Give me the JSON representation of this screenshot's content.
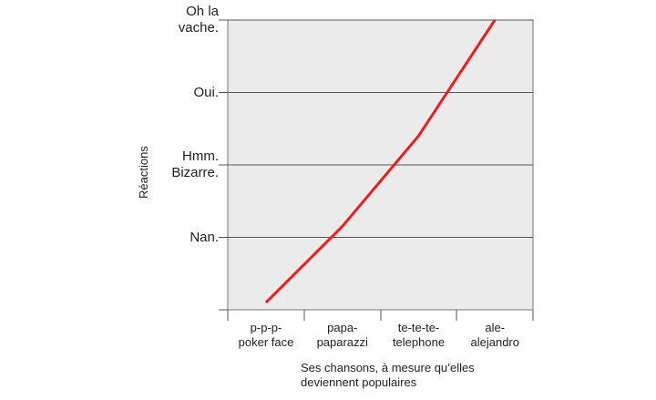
{
  "chart_data": {
    "type": "line",
    "x_label": "Ses chansons, à mesure qu’elles\ndeviennent populaires",
    "y_label": "Réactions",
    "categories": [
      "p-p-p-\npoker face",
      "papa-\npaparazzi",
      "te-te-te-\ntelephone",
      "ale-\nalejandro"
    ],
    "series": [
      {
        "color": "#ee1c1c",
        "values": [
          0.1,
          1.15,
          2.4,
          4
        ]
      }
    ],
    "ylim": [
      0,
      4
    ],
    "yticks": [
      {
        "value": 1,
        "label": "Nan."
      },
      {
        "value": 2,
        "label": "Hmm.\nBizarre."
      },
      {
        "value": 3,
        "label": "Oui."
      },
      {
        "value": 4,
        "label": "Oh la\nvache."
      }
    ],
    "grid": true
  }
}
